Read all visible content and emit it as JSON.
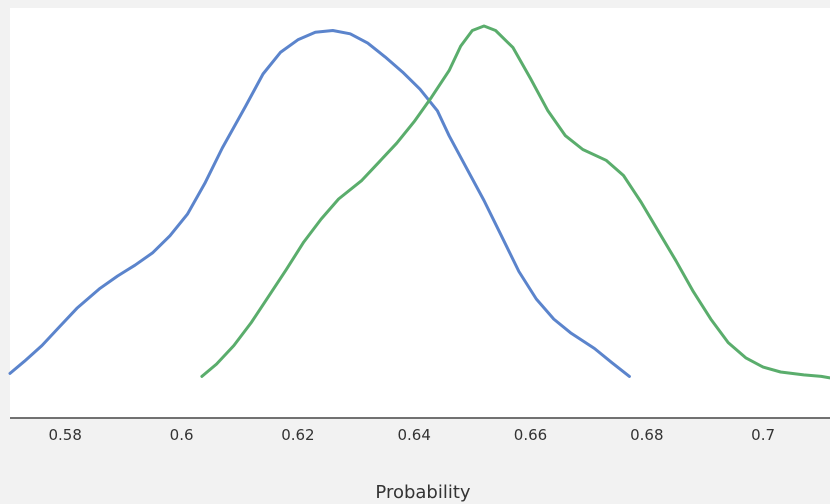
{
  "chart_data": {
    "type": "line",
    "title": "",
    "xlabel": "Probability",
    "ylabel": "",
    "xlim": [
      0.5705,
      0.7115
    ],
    "ylim": [
      0,
      1
    ],
    "grid": false,
    "y_axis_shown": false,
    "x_ticks": [
      0.58,
      0.6,
      0.62,
      0.64,
      0.66,
      0.68,
      0.7
    ],
    "x_tick_labels": [
      "0.58",
      "0.6",
      "0.62",
      "0.64",
      "0.66",
      "0.68",
      "0.7"
    ],
    "series": [
      {
        "color": "#5b84cc",
        "points": [
          [
            0.5705,
            0.066
          ],
          [
            0.573,
            0.099
          ],
          [
            0.576,
            0.141
          ],
          [
            0.579,
            0.191
          ],
          [
            0.582,
            0.241
          ],
          [
            0.586,
            0.295
          ],
          [
            0.589,
            0.328
          ],
          [
            0.592,
            0.357
          ],
          [
            0.595,
            0.39
          ],
          [
            0.598,
            0.436
          ],
          [
            0.601,
            0.494
          ],
          [
            0.604,
            0.577
          ],
          [
            0.607,
            0.672
          ],
          [
            0.611,
            0.784
          ],
          [
            0.614,
            0.871
          ],
          [
            0.617,
            0.929
          ],
          [
            0.62,
            0.963
          ],
          [
            0.623,
            0.983
          ],
          [
            0.626,
            0.988
          ],
          [
            0.629,
            0.979
          ],
          [
            0.632,
            0.954
          ],
          [
            0.635,
            0.917
          ],
          [
            0.638,
            0.876
          ],
          [
            0.641,
            0.83
          ],
          [
            0.644,
            0.772
          ],
          [
            0.646,
            0.705
          ],
          [
            0.649,
            0.618
          ],
          [
            0.652,
            0.531
          ],
          [
            0.655,
            0.436
          ],
          [
            0.658,
            0.34
          ],
          [
            0.661,
            0.266
          ],
          [
            0.664,
            0.212
          ],
          [
            0.667,
            0.174
          ],
          [
            0.671,
            0.133
          ],
          [
            0.674,
            0.095
          ],
          [
            0.677,
            0.058
          ]
        ]
      },
      {
        "color": "#5aad6c",
        "points": [
          [
            0.6035,
            0.058
          ],
          [
            0.606,
            0.091
          ],
          [
            0.609,
            0.141
          ],
          [
            0.612,
            0.203
          ],
          [
            0.615,
            0.274
          ],
          [
            0.618,
            0.345
          ],
          [
            0.621,
            0.419
          ],
          [
            0.624,
            0.481
          ],
          [
            0.627,
            0.535
          ],
          [
            0.631,
            0.585
          ],
          [
            0.634,
            0.635
          ],
          [
            0.637,
            0.685
          ],
          [
            0.64,
            0.743
          ],
          [
            0.643,
            0.809
          ],
          [
            0.646,
            0.88
          ],
          [
            0.648,
            0.946
          ],
          [
            0.65,
            0.988
          ],
          [
            0.652,
            1.0
          ],
          [
            0.654,
            0.988
          ],
          [
            0.657,
            0.942
          ],
          [
            0.66,
            0.859
          ],
          [
            0.663,
            0.772
          ],
          [
            0.666,
            0.705
          ],
          [
            0.669,
            0.668
          ],
          [
            0.673,
            0.639
          ],
          [
            0.676,
            0.598
          ],
          [
            0.679,
            0.527
          ],
          [
            0.682,
            0.448
          ],
          [
            0.685,
            0.369
          ],
          [
            0.688,
            0.286
          ],
          [
            0.691,
            0.212
          ],
          [
            0.694,
            0.149
          ],
          [
            0.697,
            0.108
          ],
          [
            0.7,
            0.083
          ],
          [
            0.703,
            0.07
          ],
          [
            0.707,
            0.062
          ],
          [
            0.71,
            0.058
          ],
          [
            0.7115,
            0.054
          ]
        ]
      }
    ]
  }
}
